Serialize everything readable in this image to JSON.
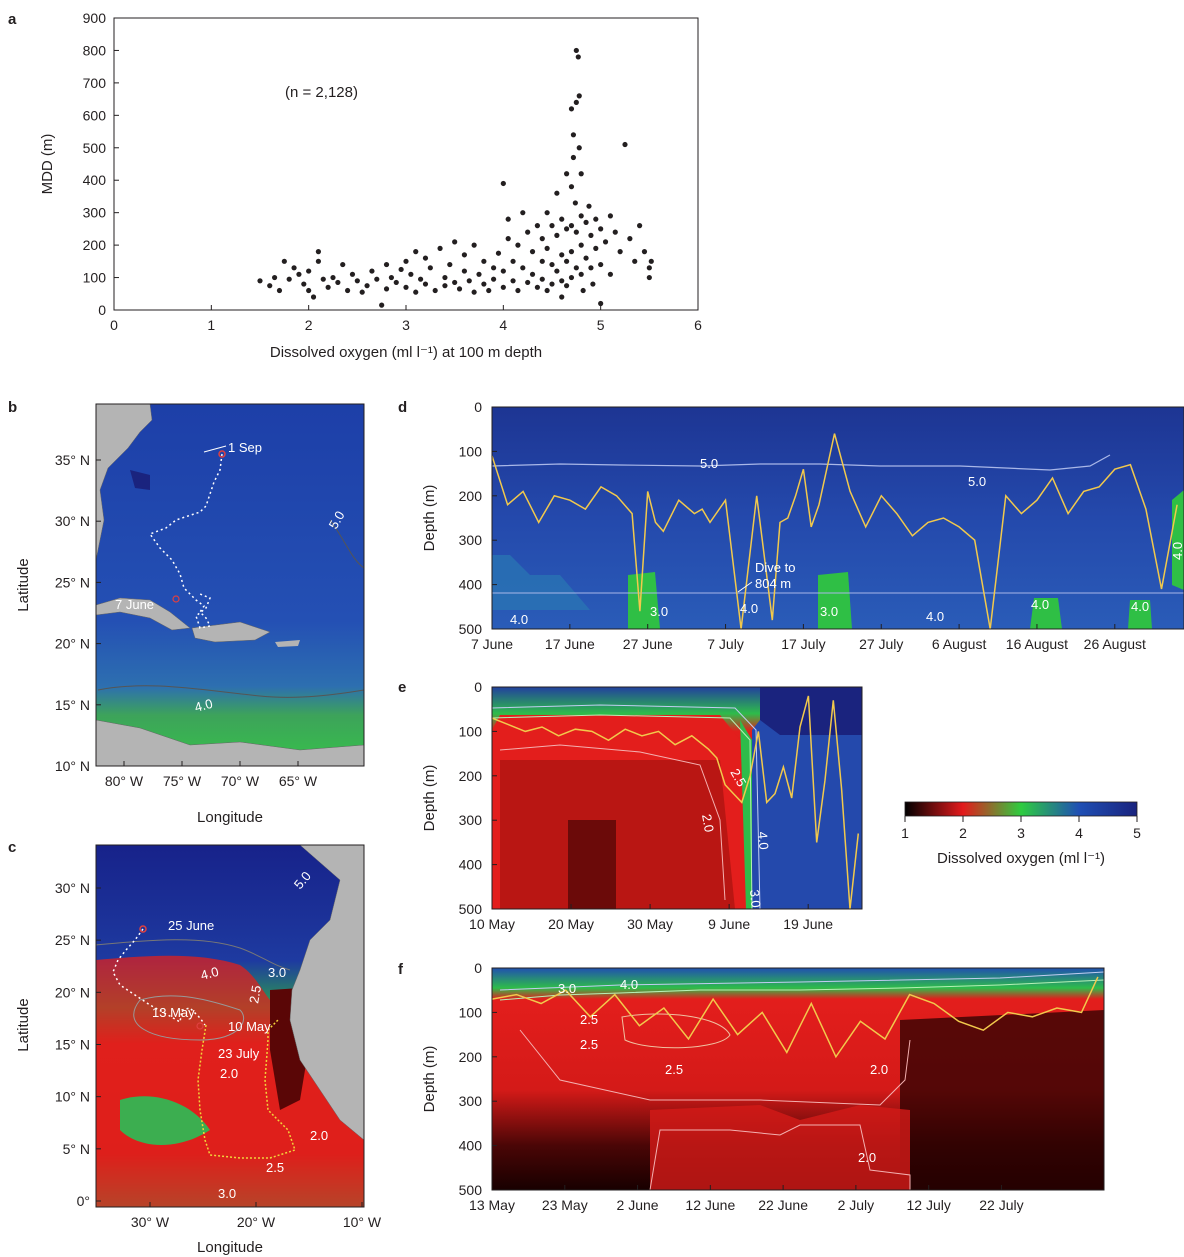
{
  "panels": {
    "a": {
      "letter": "a"
    },
    "b": {
      "letter": "b",
      "x_label": "Longitude",
      "y_label": "Latitude",
      "x_ticks": [
        "80° W",
        "75° W",
        "70° W",
        "65° W"
      ],
      "y_ticks": [
        "35° N",
        "30° N",
        "25° N",
        "20° N",
        "15° N",
        "10° N"
      ],
      "annotations": [
        "1 Sep",
        "7 June",
        "5.0",
        "4.0"
      ]
    },
    "c": {
      "letter": "c",
      "x_label": "Longitude",
      "y_label": "Latitude",
      "x_ticks": [
        "30° W",
        "20° W",
        "10° W"
      ],
      "y_ticks": [
        "30° N",
        "25° N",
        "20° N",
        "15° N",
        "10° N",
        "5° N",
        "0°"
      ],
      "annotations": [
        "25 June",
        "13 May",
        "10 May",
        "23 July",
        "5.0",
        "4.0",
        "3.0",
        "2.5",
        "2.0",
        "2.0",
        "2.5",
        "3.0"
      ]
    },
    "d": {
      "letter": "d",
      "y_label": "Depth (m)",
      "x_ticks": [
        "7 June",
        "17 June",
        "27 June",
        "7 July",
        "17 July",
        "27 July",
        "6 August",
        "16 August",
        "26 August"
      ],
      "y_ticks": [
        "0",
        "100",
        "200",
        "300",
        "400",
        "500"
      ],
      "contours": [
        "5.0",
        "5.0",
        "4.0",
        "3.0",
        "4.0",
        "3.0",
        "4.0",
        "4.0",
        "4.0",
        "4.0"
      ],
      "annotation_1": "Dive to",
      "annotation_2": "804 m"
    },
    "e": {
      "letter": "e",
      "y_label": "Depth (m)",
      "x_ticks": [
        "10 May",
        "20 May",
        "30 May",
        "9 June",
        "19 June"
      ],
      "y_ticks": [
        "0",
        "100",
        "200",
        "300",
        "400",
        "500"
      ],
      "contours": [
        "2.5",
        "2.0",
        "4.0",
        "3.0"
      ]
    },
    "f": {
      "letter": "f",
      "y_label": "Depth (m)",
      "x_ticks": [
        "13 May",
        "23 May",
        "2 June",
        "12 June",
        "22 June",
        "2 July",
        "12 July",
        "22 July"
      ],
      "y_ticks": [
        "0",
        "100",
        "200",
        "300",
        "400",
        "500"
      ],
      "contours": [
        "3.0",
        "4.0",
        "2.5",
        "2.5",
        "2.5",
        "2.0",
        "2.0"
      ]
    }
  },
  "colorbar": {
    "label": "Dissolved oxygen (ml l⁻¹)",
    "ticks": [
      "1",
      "2",
      "3",
      "4",
      "5"
    ],
    "stops": [
      "#000000",
      "#e31a1c",
      "#2ecc40",
      "#1f4fb4",
      "#1a237e"
    ]
  },
  "chart_data": [
    {
      "type": "scatter",
      "title": "",
      "annotation": "(n = 2,128)",
      "xlabel": "Dissolved oxygen (ml l⁻¹) at 100 m depth",
      "ylabel": "MDD (m)",
      "xlim": [
        0,
        6
      ],
      "ylim": [
        0,
        900
      ],
      "x_ticks": [
        0,
        1,
        2,
        3,
        4,
        5,
        6
      ],
      "y_ticks": [
        0,
        100,
        200,
        300,
        400,
        500,
        600,
        700,
        800,
        900
      ],
      "points": [
        [
          1.5,
          90
        ],
        [
          1.6,
          75
        ],
        [
          1.65,
          100
        ],
        [
          1.7,
          60
        ],
        [
          1.75,
          150
        ],
        [
          1.8,
          95
        ],
        [
          1.85,
          130
        ],
        [
          1.9,
          110
        ],
        [
          1.95,
          80
        ],
        [
          2.0,
          120
        ],
        [
          2.0,
          60
        ],
        [
          2.05,
          40
        ],
        [
          2.1,
          180
        ],
        [
          2.1,
          150
        ],
        [
          2.15,
          95
        ],
        [
          2.2,
          70
        ],
        [
          2.25,
          100
        ],
        [
          2.3,
          85
        ],
        [
          2.35,
          140
        ],
        [
          2.4,
          60
        ],
        [
          2.45,
          110
        ],
        [
          2.5,
          90
        ],
        [
          2.55,
          55
        ],
        [
          2.6,
          75
        ],
        [
          2.65,
          120
        ],
        [
          2.7,
          95
        ],
        [
          2.75,
          15
        ],
        [
          2.8,
          65
        ],
        [
          2.8,
          140
        ],
        [
          2.85,
          100
        ],
        [
          2.9,
          85
        ],
        [
          2.95,
          125
        ],
        [
          3.0,
          150
        ],
        [
          3.0,
          70
        ],
        [
          3.05,
          110
        ],
        [
          3.1,
          180
        ],
        [
          3.1,
          55
        ],
        [
          3.15,
          95
        ],
        [
          3.2,
          160
        ],
        [
          3.2,
          80
        ],
        [
          3.25,
          130
        ],
        [
          3.3,
          60
        ],
        [
          3.35,
          190
        ],
        [
          3.4,
          100
        ],
        [
          3.4,
          75
        ],
        [
          3.45,
          140
        ],
        [
          3.5,
          85
        ],
        [
          3.5,
          210
        ],
        [
          3.55,
          65
        ],
        [
          3.6,
          120
        ],
        [
          3.6,
          170
        ],
        [
          3.65,
          90
        ],
        [
          3.7,
          55
        ],
        [
          3.7,
          200
        ],
        [
          3.75,
          110
        ],
        [
          3.8,
          80
        ],
        [
          3.8,
          150
        ],
        [
          3.85,
          60
        ],
        [
          3.9,
          130
        ],
        [
          3.9,
          95
        ],
        [
          3.95,
          175
        ],
        [
          4.0,
          390
        ],
        [
          4.0,
          120
        ],
        [
          4.0,
          70
        ],
        [
          4.05,
          280
        ],
        [
          4.05,
          220
        ],
        [
          4.1,
          150
        ],
        [
          4.1,
          90
        ],
        [
          4.15,
          200
        ],
        [
          4.15,
          60
        ],
        [
          4.2,
          300
        ],
        [
          4.2,
          130
        ],
        [
          4.25,
          240
        ],
        [
          4.25,
          85
        ],
        [
          4.3,
          180
        ],
        [
          4.3,
          110
        ],
        [
          4.35,
          260
        ],
        [
          4.35,
          70
        ],
        [
          4.4,
          220
        ],
        [
          4.4,
          150
        ],
        [
          4.4,
          95
        ],
        [
          4.45,
          300
        ],
        [
          4.45,
          190
        ],
        [
          4.45,
          60
        ],
        [
          4.5,
          260
        ],
        [
          4.5,
          140
        ],
        [
          4.5,
          80
        ],
        [
          4.55,
          360
        ],
        [
          4.55,
          230
        ],
        [
          4.55,
          120
        ],
        [
          4.6,
          280
        ],
        [
          4.6,
          170
        ],
        [
          4.6,
          90
        ],
        [
          4.6,
          40
        ],
        [
          4.65,
          420
        ],
        [
          4.65,
          250
        ],
        [
          4.65,
          150
        ],
        [
          4.65,
          75
        ],
        [
          4.7,
          620
        ],
        [
          4.7,
          380
        ],
        [
          4.7,
          260
        ],
        [
          4.7,
          180
        ],
        [
          4.7,
          100
        ],
        [
          4.72,
          540
        ],
        [
          4.72,
          470
        ],
        [
          4.74,
          330
        ],
        [
          4.75,
          800
        ],
        [
          4.75,
          640
        ],
        [
          4.75,
          240
        ],
        [
          4.75,
          130
        ],
        [
          4.77,
          780
        ],
        [
          4.78,
          660
        ],
        [
          4.78,
          500
        ],
        [
          4.8,
          420
        ],
        [
          4.8,
          290
        ],
        [
          4.8,
          200
        ],
        [
          4.8,
          110
        ],
        [
          4.82,
          60
        ],
        [
          4.85,
          270
        ],
        [
          4.85,
          160
        ],
        [
          4.88,
          320
        ],
        [
          4.9,
          230
        ],
        [
          4.9,
          130
        ],
        [
          4.92,
          80
        ],
        [
          4.95,
          280
        ],
        [
          4.95,
          190
        ],
        [
          5.0,
          250
        ],
        [
          5.0,
          140
        ],
        [
          5.0,
          20
        ],
        [
          5.05,
          210
        ],
        [
          5.1,
          290
        ],
        [
          5.1,
          110
        ],
        [
          5.15,
          240
        ],
        [
          5.2,
          180
        ],
        [
          5.25,
          510
        ],
        [
          5.3,
          220
        ],
        [
          5.35,
          150
        ],
        [
          5.4,
          260
        ],
        [
          5.45,
          180
        ],
        [
          5.5,
          130
        ],
        [
          5.5,
          100
        ],
        [
          5.52,
          150
        ]
      ]
    },
    {
      "type": "line",
      "title": "",
      "panel": "d",
      "ylabel": "Depth (m)",
      "ylim": [
        500,
        0
      ],
      "x_range": [
        "7 June",
        "5 September"
      ],
      "series": [
        {
          "x_days": [
            0,
            2,
            4,
            6,
            8,
            10,
            12,
            14,
            16,
            18,
            19,
            20,
            21,
            22,
            24,
            26,
            27,
            28,
            30,
            32,
            34,
            36,
            37,
            38,
            39,
            40,
            41,
            42,
            44,
            46,
            48,
            50,
            52,
            54,
            56,
            58,
            60,
            62,
            64,
            66,
            68,
            70,
            72,
            74,
            76,
            78,
            80,
            82,
            84,
            86,
            88
          ],
          "depth": [
            110,
            220,
            190,
            260,
            200,
            210,
            230,
            180,
            200,
            240,
            460,
            190,
            260,
            280,
            210,
            240,
            230,
            260,
            210,
            500,
            200,
            480,
            260,
            250,
            200,
            140,
            270,
            220,
            60,
            190,
            270,
            200,
            240,
            290,
            260,
            250,
            270,
            300,
            500,
            200,
            240,
            210,
            160,
            240,
            190,
            180,
            140,
            130,
            230,
            410,
            220
          ]
        }
      ]
    },
    {
      "type": "line",
      "title": "",
      "panel": "e",
      "ylabel": "Depth (m)",
      "ylim": [
        500,
        0
      ],
      "x_range": [
        "10 May",
        "24 June"
      ],
      "series": [
        {
          "x_days": [
            0,
            2,
            4,
            6,
            8,
            10,
            12,
            14,
            16,
            18,
            20,
            22,
            24,
            26,
            27,
            28,
            29,
            30,
            31,
            32,
            33,
            34,
            35,
            36,
            37,
            38,
            39,
            40,
            41,
            42,
            43,
            44
          ],
          "depth": [
            70,
            85,
            100,
            90,
            110,
            95,
            100,
            120,
            95,
            110,
            100,
            130,
            110,
            140,
            160,
            220,
            240,
            260,
            200,
            100,
            260,
            240,
            180,
            250,
            90,
            20,
            350,
            210,
            30,
            230,
            500,
            330
          ]
        }
      ]
    },
    {
      "type": "line",
      "title": "",
      "panel": "f",
      "ylabel": "Depth (m)",
      "ylim": [
        500,
        0
      ],
      "x_range": [
        "13 May",
        "31 July"
      ],
      "series": [
        {
          "x_days": [
            0,
            3,
            6,
            9,
            12,
            15,
            18,
            21,
            24,
            27,
            30,
            33,
            36,
            39,
            42,
            45,
            48,
            51,
            54,
            57,
            60,
            63,
            66,
            69,
            72,
            74
          ],
          "depth": [
            70,
            60,
            80,
            50,
            110,
            60,
            130,
            90,
            160,
            70,
            150,
            100,
            190,
            80,
            200,
            120,
            160,
            60,
            80,
            120,
            140,
            100,
            110,
            90,
            100,
            20
          ]
        }
      ]
    }
  ]
}
